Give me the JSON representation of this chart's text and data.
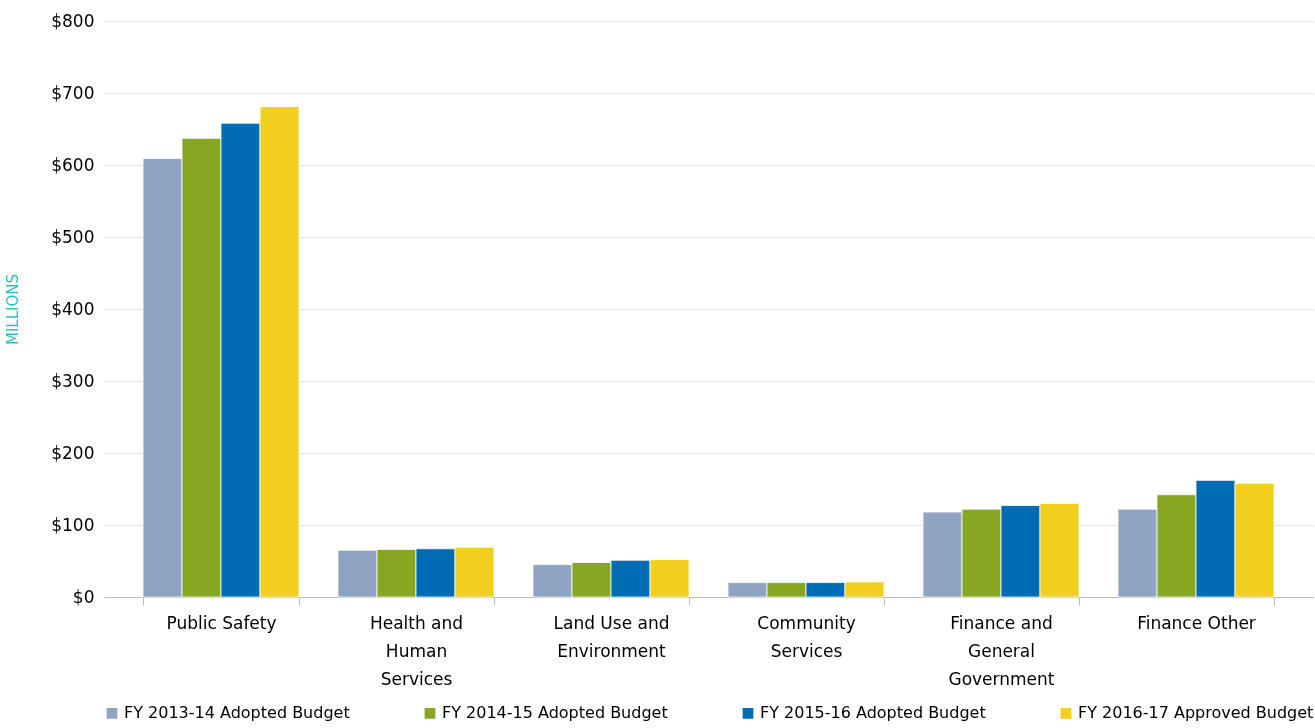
{
  "chart_data": {
    "type": "bar",
    "ylabel": "MILLIONS",
    "categories": [
      "Public Safety",
      "Health and Human Services",
      "Land Use and Environment",
      "Community Services",
      "Finance and General Government",
      "Finance Other"
    ],
    "series": [
      {
        "name": "FY 2013-14 Adopted Budget",
        "color": "#8fa3c2",
        "values": [
          609,
          65,
          45,
          20,
          118,
          122
        ]
      },
      {
        "name": "FY 2014-15 Adopted Budget",
        "color": "#87a622",
        "values": [
          637,
          66,
          48,
          20,
          122,
          142
        ]
      },
      {
        "name": "FY 2015-16 Adopted Budget",
        "color": "#006cb5",
        "values": [
          658,
          67,
          51,
          20,
          127,
          162
        ]
      },
      {
        "name": "FY 2016-17 Approved Budget",
        "color": "#f2cf1c",
        "values": [
          681,
          69,
          52,
          21,
          130,
          158
        ]
      }
    ],
    "ylim": [
      0,
      800
    ],
    "yticks": [
      {
        "value": 0,
        "label": "$0"
      },
      {
        "value": 100,
        "label": "$100"
      },
      {
        "value": 200,
        "label": "$200"
      },
      {
        "value": 300,
        "label": "$300"
      },
      {
        "value": 400,
        "label": "$400"
      },
      {
        "value": 500,
        "label": "$500"
      },
      {
        "value": 600,
        "label": "$600"
      },
      {
        "value": 700,
        "label": "$700"
      },
      {
        "value": 800,
        "label": "$800"
      }
    ],
    "grid": "y",
    "legend": "bottom"
  }
}
